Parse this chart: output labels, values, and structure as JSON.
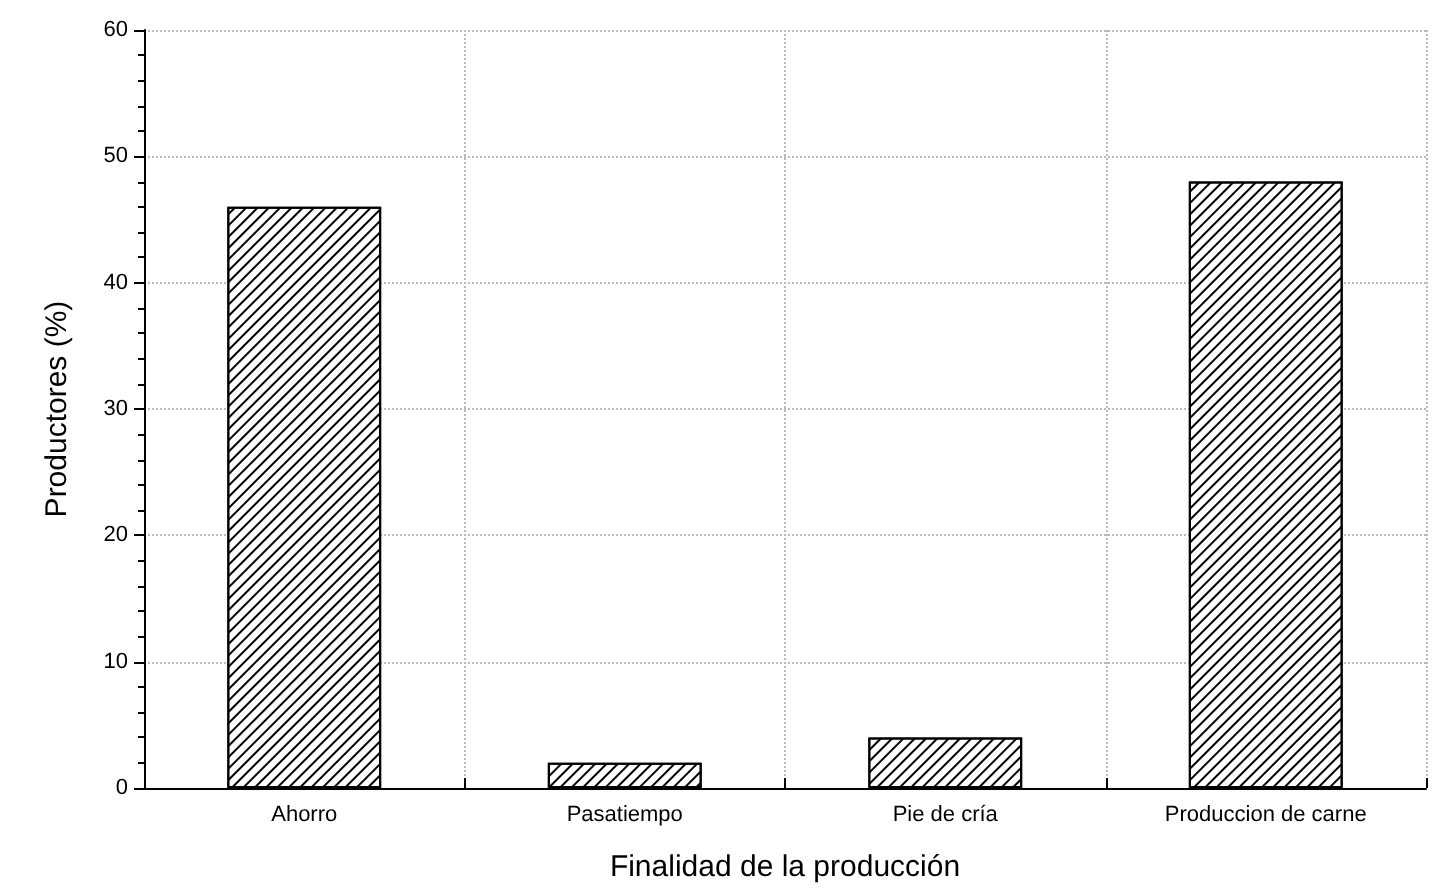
{
  "chart_data": {
    "type": "bar",
    "xlabel": "Finalidad de la producción",
    "ylabel": "Productores (%)",
    "categories": [
      "Ahorro",
      "Pasatiempo",
      "Pie de cría",
      "Produccion de carne"
    ],
    "values": [
      46,
      2,
      4,
      48
    ],
    "color": "#ffffff",
    "ylim": [
      0,
      60
    ],
    "yticks": [
      0,
      10,
      20,
      30,
      40,
      50,
      60
    ],
    "grid": true
  }
}
